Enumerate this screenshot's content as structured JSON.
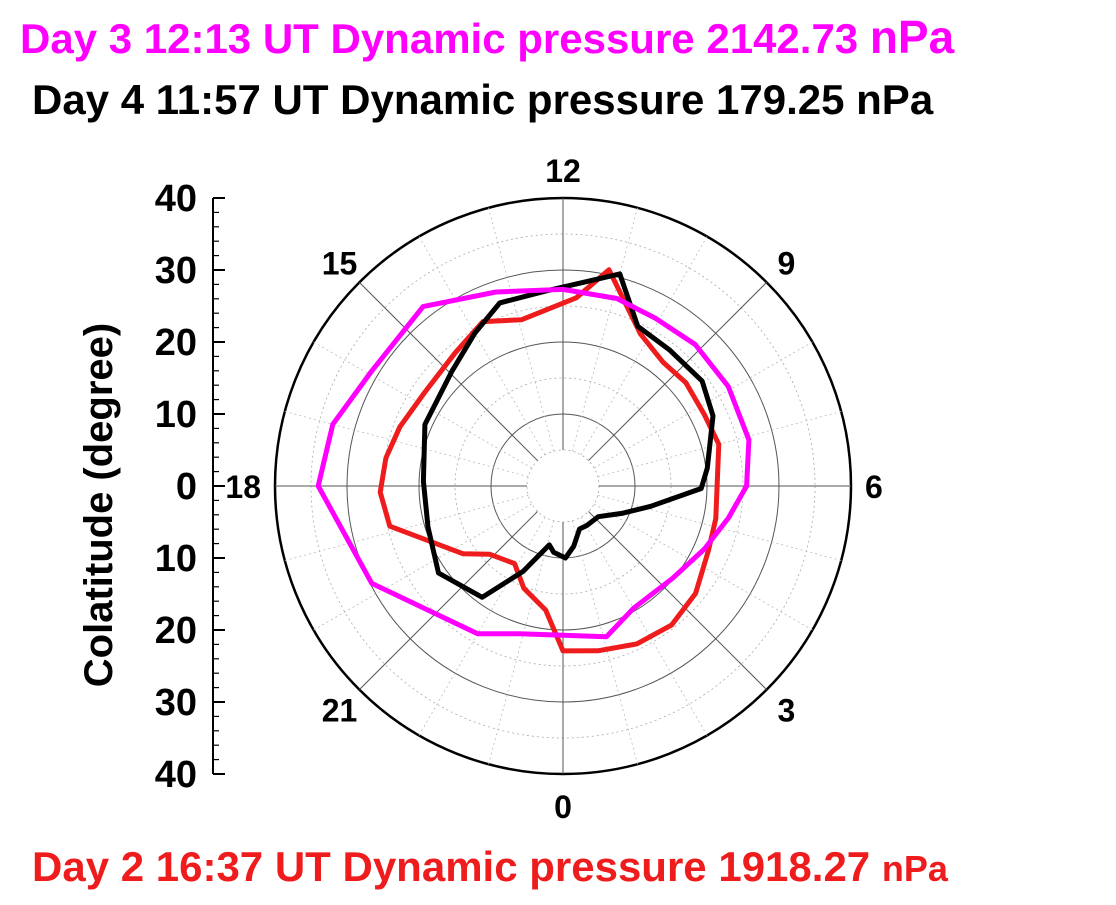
{
  "titles": {
    "day3": {
      "text": "Day 3 12:13 UT Dynamic pressure 2142.73",
      "unit": "nPa"
    },
    "day4": {
      "text": "Day 4 11:57 UT Dynamic pressure 179.25 nPa"
    },
    "day2": {
      "text": "Day 2 16:37 UT Dynamic pressure 1918.27",
      "unit": "nPa"
    }
  },
  "colors": {
    "day3": "#ff00ff",
    "day4": "#000000",
    "day2": "#ee1c1c",
    "grid": "#999999"
  },
  "chart_data": {
    "type": "polar-line",
    "ylabel": "Colatitude (degree)",
    "r_max": 40,
    "ring_step": 5,
    "y_ticks": [
      40,
      30,
      20,
      10,
      0,
      10,
      20,
      30,
      40
    ],
    "mlt_labels": [
      "12",
      "9",
      "6",
      "3",
      "0",
      "21",
      "18",
      "15"
    ],
    "series": [
      {
        "key": "day2",
        "color": "#ee1c1c",
        "points": [
          [
            11.2,
            30.7
          ],
          [
            11.73,
            26.2
          ],
          [
            12.93,
            23.8
          ],
          [
            13.73,
            25.4
          ],
          [
            14.6,
            23.8
          ],
          [
            15.73,
            23.2
          ],
          [
            16.67,
            24.1
          ],
          [
            17.4,
            24.9
          ],
          [
            18.13,
            25.4
          ],
          [
            18.87,
            24.7
          ],
          [
            20.27,
            16.8
          ],
          [
            20.87,
            13.9
          ],
          [
            21.87,
            12.7
          ],
          [
            22.6,
            15.2
          ],
          [
            23.47,
            17.4
          ],
          [
            0.0,
            22.9
          ],
          [
            0.8,
            23.4
          ],
          [
            1.67,
            24.2
          ],
          [
            2.53,
            24.5
          ],
          [
            3.4,
            23.7
          ],
          [
            4.4,
            22.1
          ],
          [
            5.2,
            21.7
          ],
          [
            6.0,
            21.4
          ],
          [
            7.0,
            22.4
          ],
          [
            7.8,
            22.0
          ],
          [
            8.67,
            22.3
          ],
          [
            9.4,
            22.1
          ],
          [
            10.2,
            23.7
          ],
          [
            11.2,
            30.7
          ]
        ]
      },
      {
        "key": "day4",
        "color": "#000000",
        "points": [
          [
            11.0,
            30.5
          ],
          [
            12.33,
            27.2
          ],
          [
            13.27,
            26.9
          ],
          [
            14.0,
            24.5
          ],
          [
            14.93,
            22.2
          ],
          [
            16.4,
            21.0
          ],
          [
            17.87,
            19.4
          ],
          [
            19.13,
            19.6
          ],
          [
            20.33,
            21.1
          ],
          [
            21.6,
            19.1
          ],
          [
            22.33,
            13.1
          ],
          [
            23.13,
            8.4
          ],
          [
            23.47,
            9.3
          ],
          [
            0.13,
            10.0
          ],
          [
            0.67,
            8.5
          ],
          [
            1.4,
            6.4
          ],
          [
            2.07,
            6.4
          ],
          [
            3.27,
            6.5
          ],
          [
            4.33,
            9.0
          ],
          [
            5.13,
            12.5
          ],
          [
            5.93,
            19.2
          ],
          [
            6.47,
            20.2
          ],
          [
            7.67,
            23.0
          ],
          [
            8.47,
            24.2
          ],
          [
            9.47,
            24.0
          ],
          [
            10.33,
            24.5
          ],
          [
            11.0,
            30.5
          ]
        ]
      },
      {
        "key": "day3",
        "color": "#ff00ff",
        "points": [
          [
            12.0,
            27.3
          ],
          [
            13.27,
            28.5
          ],
          [
            14.53,
            31.6
          ],
          [
            15.93,
            31.0
          ],
          [
            17.0,
            33.1
          ],
          [
            18.0,
            34.0
          ],
          [
            19.8,
            29.8
          ],
          [
            22.0,
            23.7
          ],
          [
            22.9,
            21.4
          ],
          [
            1.07,
            21.8
          ],
          [
            2.0,
            19.6
          ],
          [
            3.33,
            19.9
          ],
          [
            4.4,
            21.5
          ],
          [
            5.27,
            23.4
          ],
          [
            6.0,
            25.5
          ],
          [
            6.93,
            26.6
          ],
          [
            8.07,
            26.8
          ],
          [
            9.13,
            26.9
          ],
          [
            10.07,
            26.6
          ],
          [
            10.93,
            27.1
          ],
          [
            12.0,
            27.3
          ]
        ]
      }
    ]
  }
}
